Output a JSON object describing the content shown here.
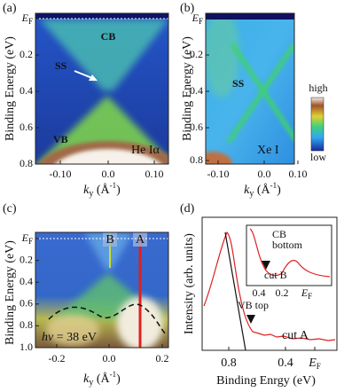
{
  "panels": {
    "a": {
      "label": "(a)",
      "y_label": "Binding Energy (eV)",
      "y_ticks": [
        {
          "main": "E",
          "sub": "F"
        },
        "0.2",
        "0.4",
        "0.6",
        "0.8"
      ],
      "x_ticks": [
        "-0.10",
        "0.0",
        "0.10"
      ],
      "x_label": {
        "symbol": "k",
        "sub": "y",
        "unit": " (Å",
        "sup": "-1",
        "close": ")"
      },
      "annotations": {
        "cb": "CB",
        "ss": "SS",
        "vb": "VB",
        "source": "He Iα"
      }
    },
    "b": {
      "label": "(b)",
      "y_label": "Binding Energy (eV)",
      "y_ticks": [
        {
          "main": "E",
          "sub": "F"
        },
        "0.2",
        "0.4",
        "0.6",
        "0.8"
      ],
      "x_ticks": [
        "-0.10",
        "0.0",
        "0.10"
      ],
      "x_label": {
        "symbol": "k",
        "sub": "y",
        "unit": " (Å",
        "sup": "-1",
        "close": ")"
      },
      "annotations": {
        "ss": "SS",
        "source": "Xe I"
      },
      "colorbar": {
        "high": "high",
        "low": "low"
      }
    },
    "c": {
      "label": "(c)",
      "y_label": "Binding Energy (eV)",
      "y_ticks": [
        {
          "main": "E",
          "sub": "F"
        },
        "0.2",
        "0.4",
        "0.6",
        "0.8",
        "1.0"
      ],
      "x_ticks": [
        "-0.2",
        "0.0",
        "0.2"
      ],
      "x_label": {
        "symbol": "k",
        "sub": "y",
        "unit": " (Å",
        "sup": "-1",
        "close": ")"
      },
      "annotations": {
        "cut_b": "B",
        "cut_a": "A",
        "photon": {
          "symbol": "hν",
          "rest": " = 38 eV"
        }
      }
    },
    "d": {
      "label": "(d)",
      "y_label": "Intensity (arb. units)",
      "x_label": "Binding Enrgy (eV)",
      "x_ticks": [
        "0.8",
        "0.4",
        {
          "main": "E",
          "sub": "F"
        }
      ],
      "annotations": {
        "vb_top": "VB top",
        "cut_a": "cut A"
      },
      "inset": {
        "title": [
          "CB",
          "bottom"
        ],
        "cut": "cut B",
        "x_ticks": [
          "0.4",
          "0.2",
          {
            "main": "E",
            "sub": "F"
          }
        ]
      }
    }
  }
}
